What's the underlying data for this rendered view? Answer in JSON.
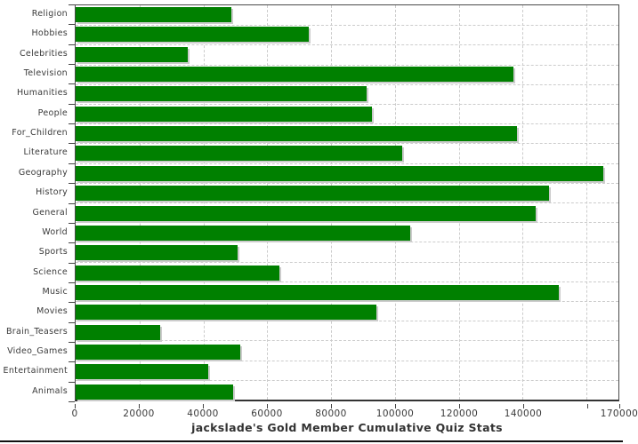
{
  "chart_data": {
    "type": "bar",
    "orientation": "horizontal",
    "title": "jackslade's Gold Member Cumulative Quiz Stats",
    "categories": [
      "Religion",
      "Hobbies",
      "Celebrities",
      "Television",
      "Humanities",
      "People",
      "For_Children",
      "Literature",
      "Geography",
      "History",
      "General",
      "World",
      "Sports",
      "Science",
      "Music",
      "Movies",
      "Brain_Teasers",
      "Video_Games",
      "Entertainment",
      "Animals"
    ],
    "values": [
      48900,
      73100,
      35000,
      137100,
      91000,
      92700,
      138200,
      102300,
      165400,
      148200,
      144100,
      104700,
      50800,
      63900,
      151200,
      94200,
      26400,
      51500,
      41400,
      49200
    ],
    "xlabel": "",
    "ylabel": "",
    "xlim": [
      0,
      170000
    ],
    "x_ticks": [
      0,
      20000,
      40000,
      60000,
      80000,
      100000,
      120000,
      140000,
      160000,
      170000
    ],
    "x_tick_labels": [
      "0",
      "20000",
      "40000",
      "60000",
      "80000",
      "100000",
      "120000",
      "140000",
      "",
      "170000"
    ],
    "grid": "dashed-both-axes",
    "legend": "none",
    "colors": {
      "bar": "#008000",
      "bar_shadow": "#cccccc",
      "grid": "#cccccc",
      "axis": "#444444",
      "tick_text": "#3a3a3a",
      "title_text": "#333333",
      "bottom_rule": "#111111",
      "background": "#ffffff"
    }
  }
}
